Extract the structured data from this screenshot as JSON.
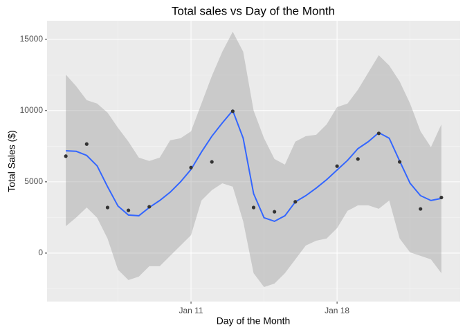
{
  "chart_data": {
    "type": "scatter",
    "title": "Total sales vs Day of the Month",
    "x_label": "Day of the Month",
    "y_label": "Total Sales ($)",
    "x": [
      5,
      6,
      7,
      8,
      9,
      11,
      12,
      13,
      14,
      15,
      16,
      18,
      19,
      20,
      21,
      22,
      23
    ],
    "values": [
      6800,
      7650,
      3200,
      3000,
      3250,
      6000,
      6400,
      9950,
      3200,
      2900,
      3600,
      6100,
      6600,
      8400,
      6400,
      3100,
      3900
    ],
    "color": "#333333",
    "smooth": {
      "color": "#3366FF",
      "fill": "#999999",
      "x": [
        5,
        5.5,
        6,
        6.5,
        7,
        7.5,
        8,
        8.5,
        9,
        9.5,
        10,
        10.5,
        11,
        11.5,
        12,
        12.5,
        13,
        13.5,
        14,
        14.5,
        15,
        15.5,
        16,
        16.5,
        17,
        17.5,
        18,
        18.5,
        19,
        19.5,
        20,
        20.5,
        21,
        21.5,
        22,
        22.5,
        23
      ],
      "y": [
        7180,
        7140,
        6850,
        6120,
        4660,
        3300,
        2670,
        2620,
        3200,
        3690,
        4270,
        5000,
        5870,
        7090,
        8200,
        9130,
        10000,
        8060,
        4170,
        2480,
        2230,
        2620,
        3590,
        4030,
        4560,
        5150,
        5830,
        6500,
        7330,
        7820,
        8450,
        8060,
        6460,
        4900,
        4030,
        3690,
        3840
      ],
      "upper": [
        12520,
        11700,
        10730,
        10490,
        9850,
        8790,
        7820,
        6700,
        6460,
        6700,
        7910,
        8060,
        8540,
        10490,
        12430,
        14130,
        15530,
        14130,
        10000,
        8060,
        6600,
        6210,
        7820,
        8200,
        8300,
        9030,
        10240,
        10490,
        11460,
        12670,
        13880,
        13160,
        12040,
        10490,
        8540,
        7430,
        9030
      ],
      "lower": [
        1890,
        2500,
        3200,
        2480,
        1020,
        -1170,
        -1890,
        -1650,
        -920,
        -920,
        -190,
        530,
        1260,
        3690,
        4420,
        4900,
        4660,
        2230,
        -1410,
        -2380,
        -2140,
        -1410,
        -440,
        530,
        870,
        1020,
        1750,
        2960,
        3350,
        3350,
        3110,
        3690,
        1020,
        50,
        -190,
        -440,
        -1410
      ]
    },
    "xlim": [
      4.1,
      23.9
    ],
    "xticks": [
      {
        "value": 11,
        "label": "Jan 11"
      },
      {
        "value": 18,
        "label": "Jan 18"
      }
    ],
    "ylim": [
      -3400,
      16300
    ],
    "yticks": [
      0,
      5000,
      10000,
      15000
    ],
    "grid": true
  }
}
